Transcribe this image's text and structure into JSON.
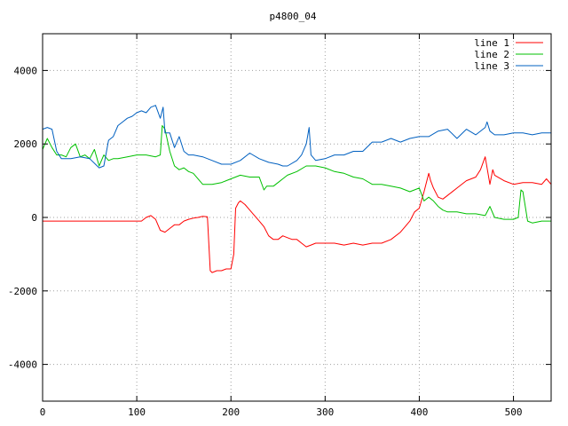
{
  "chart_data": {
    "type": "line",
    "title": "p4800_04",
    "xlim": [
      0,
      540
    ],
    "ylim": [
      -5000,
      5000
    ],
    "xticks": [
      0,
      100,
      200,
      300,
      400,
      500
    ],
    "yticks": [
      -4000,
      -2000,
      0,
      2000,
      4000
    ],
    "grid": true,
    "legend_position": "top-right",
    "series": [
      {
        "name": "line 1",
        "color": "#ff0000",
        "x": [
          0,
          50,
          105,
          110,
          115,
          120,
          125,
          130,
          135,
          140,
          145,
          150,
          155,
          160,
          165,
          170,
          175,
          178,
          180,
          185,
          190,
          195,
          200,
          203,
          205,
          208,
          210,
          215,
          220,
          225,
          230,
          235,
          240,
          245,
          250,
          255,
          260,
          265,
          270,
          275,
          280,
          285,
          290,
          295,
          300,
          310,
          320,
          330,
          340,
          350,
          360,
          370,
          380,
          390,
          395,
          400,
          405,
          410,
          412,
          415,
          420,
          425,
          430,
          440,
          450,
          460,
          465,
          470,
          472,
          475,
          478,
          480,
          490,
          500,
          510,
          520,
          530,
          535,
          540
        ],
        "y": [
          -100,
          -100,
          -100,
          0,
          50,
          -50,
          -350,
          -400,
          -300,
          -200,
          -200,
          -100,
          -50,
          -20,
          0,
          30,
          20,
          -1450,
          -1500,
          -1450,
          -1450,
          -1400,
          -1400,
          -1000,
          250,
          400,
          450,
          350,
          200,
          50,
          -100,
          -250,
          -500,
          -600,
          -600,
          -500,
          -550,
          -600,
          -600,
          -700,
          -800,
          -750,
          -700,
          -700,
          -700,
          -700,
          -750,
          -700,
          -750,
          -700,
          -700,
          -600,
          -400,
          -100,
          150,
          250,
          700,
          1200,
          1000,
          800,
          550,
          500,
          600,
          800,
          1000,
          1100,
          1300,
          1650,
          1350,
          900,
          1300,
          1150,
          1000,
          900,
          950,
          950,
          900,
          1050,
          900
        ]
      },
      {
        "name": "line 2",
        "color": "#00c000",
        "x": [
          0,
          5,
          10,
          15,
          20,
          25,
          30,
          35,
          40,
          45,
          50,
          55,
          60,
          65,
          70,
          75,
          80,
          90,
          100,
          110,
          120,
          125,
          127,
          130,
          135,
          140,
          145,
          150,
          155,
          160,
          170,
          180,
          190,
          200,
          210,
          220,
          230,
          235,
          238,
          240,
          245,
          250,
          255,
          260,
          270,
          280,
          290,
          300,
          310,
          320,
          330,
          340,
          350,
          360,
          370,
          380,
          390,
          400,
          405,
          410,
          415,
          420,
          425,
          430,
          440,
          450,
          460,
          470,
          475,
          480,
          490,
          500,
          505,
          508,
          510,
          515,
          520,
          530,
          540
        ],
        "y": [
          1850,
          2150,
          1900,
          1700,
          1700,
          1650,
          1900,
          2000,
          1650,
          1700,
          1600,
          1850,
          1400,
          1700,
          1550,
          1600,
          1600,
          1650,
          1700,
          1700,
          1650,
          1700,
          2500,
          2400,
          1800,
          1400,
          1300,
          1350,
          1250,
          1200,
          900,
          900,
          950,
          1050,
          1150,
          1100,
          1100,
          750,
          850,
          850,
          850,
          950,
          1050,
          1150,
          1250,
          1400,
          1400,
          1350,
          1250,
          1200,
          1100,
          1050,
          900,
          900,
          850,
          800,
          700,
          800,
          450,
          550,
          450,
          300,
          200,
          150,
          150,
          100,
          100,
          50,
          300,
          0,
          -50,
          -50,
          0,
          750,
          700,
          -100,
          -150,
          -100,
          -100
        ]
      },
      {
        "name": "line 3",
        "color": "#0060c0",
        "x": [
          0,
          5,
          10,
          15,
          20,
          30,
          40,
          50,
          60,
          65,
          70,
          75,
          80,
          85,
          90,
          95,
          100,
          105,
          110,
          115,
          120,
          125,
          128,
          130,
          135,
          140,
          145,
          150,
          155,
          160,
          170,
          180,
          190,
          200,
          210,
          220,
          230,
          240,
          250,
          255,
          260,
          270,
          275,
          280,
          283,
          285,
          290,
          300,
          310,
          320,
          330,
          340,
          350,
          360,
          370,
          380,
          390,
          400,
          410,
          420,
          430,
          440,
          450,
          460,
          470,
          472,
          475,
          480,
          490,
          500,
          510,
          520,
          530,
          540
        ],
        "y": [
          2400,
          2450,
          2400,
          1800,
          1600,
          1600,
          1650,
          1600,
          1350,
          1400,
          2100,
          2200,
          2500,
          2600,
          2700,
          2750,
          2850,
          2900,
          2850,
          3000,
          3050,
          2700,
          3000,
          2300,
          2300,
          1900,
          2200,
          1800,
          1700,
          1700,
          1650,
          1550,
          1450,
          1450,
          1550,
          1750,
          1600,
          1500,
          1450,
          1400,
          1400,
          1550,
          1700,
          2000,
          2450,
          1700,
          1550,
          1600,
          1700,
          1700,
          1800,
          1800,
          2050,
          2050,
          2150,
          2050,
          2150,
          2200,
          2200,
          2350,
          2400,
          2150,
          2400,
          2250,
          2450,
          2600,
          2350,
          2250,
          2250,
          2300,
          2300,
          2250,
          2300,
          2300
        ]
      }
    ]
  }
}
